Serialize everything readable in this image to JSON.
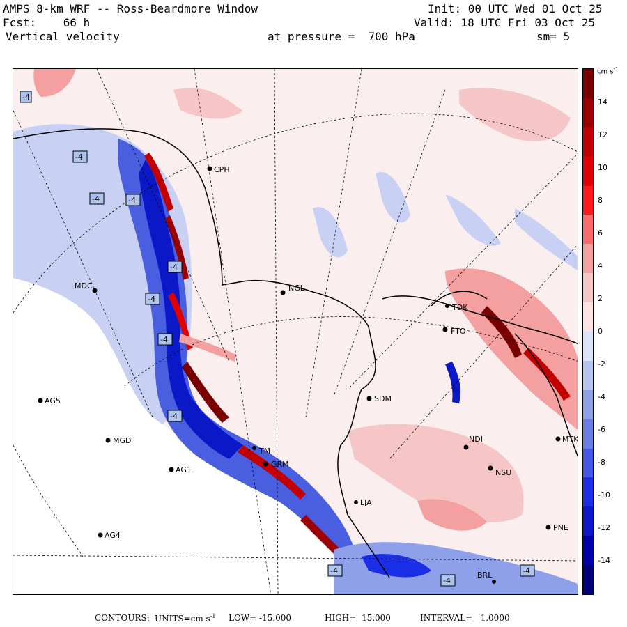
{
  "header": {
    "title": "AMPS 8-km WRF -- Ross-Beardmore Window",
    "forecast": "Fcst:    66 h",
    "variable": "Vertical velocity",
    "init": "Init: 00 UTC Wed 01 Oct 25",
    "valid": "Valid: 18 UTC Fri 03 Oct 25",
    "pressure": "at pressure =  700 hPa",
    "smoothing": "sm= 5"
  },
  "colorbar": {
    "unit": "cm s",
    "unit_exp": "-1",
    "tick_labels": [
      "14",
      "12",
      "10",
      "8",
      "6",
      "4",
      "2",
      "0",
      "-2",
      "-4",
      "-6",
      "-8",
      "-10",
      "-12",
      "-14"
    ],
    "colors": [
      "#7a0000",
      "#9c0000",
      "#c20000",
      "#e00000",
      "#ff1a1a",
      "#ff6a6a",
      "#f4a0a0",
      "#f6c6c6",
      "#fbe3e3",
      "#dde3f8",
      "#b8c4f0",
      "#8fa0ea",
      "#6b7ee6",
      "#4357e8",
      "#1a2ee8",
      "#0a18c8",
      "#0000a8",
      "#00007a"
    ]
  },
  "stations": [
    {
      "id": "CPH",
      "label": "CPH"
    },
    {
      "id": "MDC",
      "label": "MDC"
    },
    {
      "id": "NGL",
      "label": "NGL"
    },
    {
      "id": "FTO",
      "label": "FTO"
    },
    {
      "id": "TDK",
      "label": "TDK"
    },
    {
      "id": "AG5",
      "label": "AG5"
    },
    {
      "id": "MGD",
      "label": "MGD"
    },
    {
      "id": "AG1",
      "label": "AG1"
    },
    {
      "id": "AG4",
      "label": "AG4"
    },
    {
      "id": "SDM",
      "label": "SDM"
    },
    {
      "id": "NDI",
      "label": "NDI"
    },
    {
      "id": "MTK",
      "label": "MTK"
    },
    {
      "id": "NSU",
      "label": "NSU"
    },
    {
      "id": "GRM",
      "label": "GRM"
    },
    {
      "id": "PNE",
      "label": "PNE"
    },
    {
      "id": "LJA",
      "label": "LJA"
    },
    {
      "id": "TM",
      "label": "TM"
    },
    {
      "id": "BRL",
      "label": "BRL"
    }
  ],
  "contour_labels": [
    "-4"
  ],
  "footer": {
    "contours_label": "CONTOURS:",
    "units_label": "UNITS=cm s",
    "units_exp": "-1",
    "low": "LOW= -15.000",
    "high": "HIGH=  15.000",
    "interval": "INTERVAL=   1.0000"
  }
}
